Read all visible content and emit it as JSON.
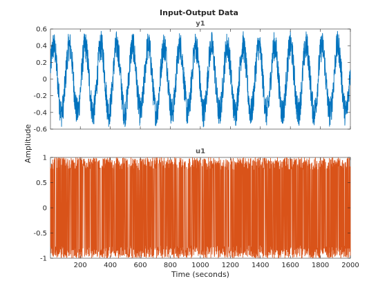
{
  "chart_data": {
    "type": "line",
    "title": "Input-Output Data",
    "xlabel": "Time (seconds)",
    "ylabel": "Amplitude",
    "xlim": [
      1,
      2000
    ],
    "x_ticks": [
      "200",
      "400",
      "600",
      "800",
      "1000",
      "1200",
      "1400",
      "1600",
      "1800",
      "2000"
    ],
    "x_tick_values": [
      200,
      400,
      600,
      800,
      1000,
      1200,
      1400,
      1600,
      1800,
      2000
    ],
    "grid": false,
    "panels": [
      {
        "name": "y1",
        "color": "#0072BD",
        "ylim": [
          -0.6,
          0.6
        ],
        "y_ticks": [
          "0.6",
          "0.4",
          "0.2",
          "0",
          "-0.2",
          "-0.4",
          "-0.6"
        ],
        "y_tick_values": [
          0.6,
          0.4,
          0.2,
          0,
          -0.2,
          -0.4,
          -0.6
        ],
        "description": "oscillating output, ~19 cycles over 2000 s, amplitude ~0.5 with noise",
        "cycles": 19,
        "amplitude": 0.4,
        "noise": 0.18
      },
      {
        "name": "u1",
        "color": "#D95319",
        "ylim": [
          -1,
          1
        ],
        "y_ticks": [
          "1",
          "0.5",
          "0",
          "-0.5",
          "-1"
        ],
        "y_tick_values": [
          1,
          0.5,
          0,
          -0.5,
          -1
        ],
        "description": "random input signal switching densely between -1 and 1",
        "range": [
          -1,
          1
        ]
      }
    ]
  }
}
